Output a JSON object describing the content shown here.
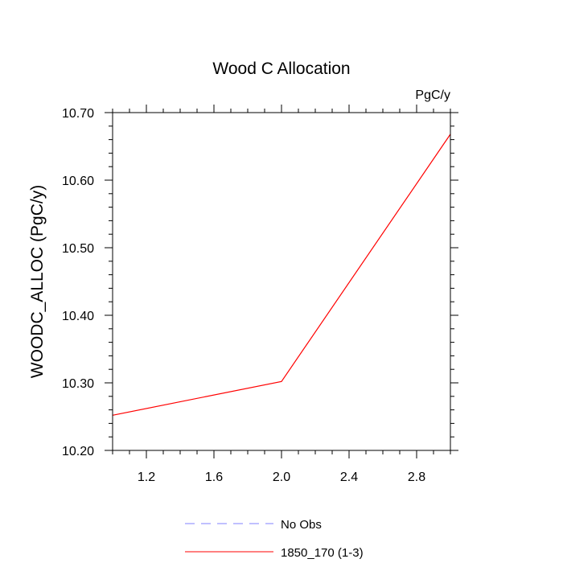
{
  "chart_data": {
    "type": "line",
    "title": "Wood C Allocation",
    "units_label": "PgC/y",
    "xlabel": "",
    "ylabel": "WOODC_ALLOC  (PgC/y)",
    "xlim": [
      1.0,
      3.0
    ],
    "ylim": [
      10.2,
      10.7
    ],
    "x_ticks": [
      1.2,
      1.6,
      2.0,
      2.4,
      2.8
    ],
    "x_tick_labels": [
      "1.2",
      "1.6",
      "2.0",
      "2.4",
      "2.8"
    ],
    "y_ticks": [
      10.2,
      10.3,
      10.4,
      10.5,
      10.6,
      10.7
    ],
    "y_tick_labels": [
      "10.20",
      "10.30",
      "10.40",
      "10.50",
      "10.60",
      "10.70"
    ],
    "grid": false,
    "legend_position": "bottom-center",
    "series": [
      {
        "name": "1850_170 (1-3)",
        "color": "#ff0000",
        "dash": "solid",
        "x": [
          1.0,
          2.0,
          3.0
        ],
        "y": [
          10.252,
          10.302,
          10.668
        ]
      }
    ],
    "legend": [
      {
        "label": "No Obs",
        "color": "#8080ff",
        "dash": "dashed"
      },
      {
        "label": "1850_170 (1-3)",
        "color": "#ff0000",
        "dash": "solid"
      }
    ]
  }
}
